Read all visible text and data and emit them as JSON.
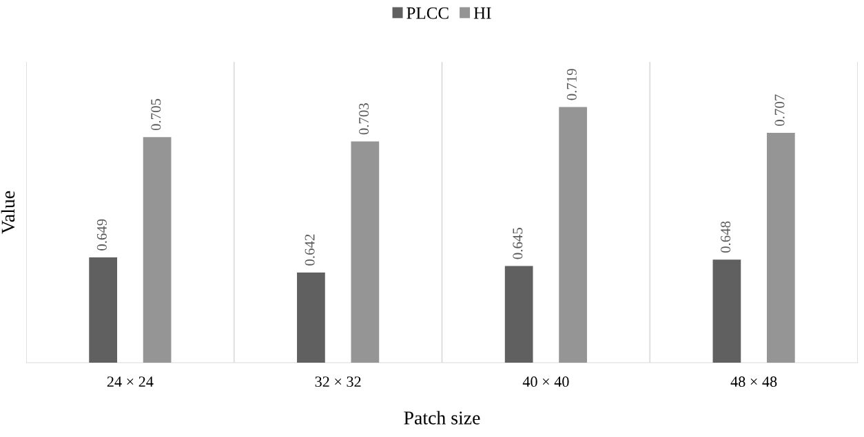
{
  "chart_data": {
    "type": "bar",
    "xlabel": "Patch size",
    "ylabel": "Value",
    "categories": [
      "24 × 24",
      "32 × 32",
      "40 × 40",
      "48 × 48"
    ],
    "series": [
      {
        "name": "PLCC",
        "color": "#606060",
        "values": [
          0.649,
          0.642,
          0.645,
          0.648
        ]
      },
      {
        "name": "HI",
        "color": "#959595",
        "values": [
          0.705,
          0.703,
          0.719,
          0.707
        ]
      }
    ],
    "ylim": [
      0.6,
      0.74
    ],
    "tick_labels": "x",
    "data_labels": true,
    "grid": "x",
    "legend": "top"
  }
}
